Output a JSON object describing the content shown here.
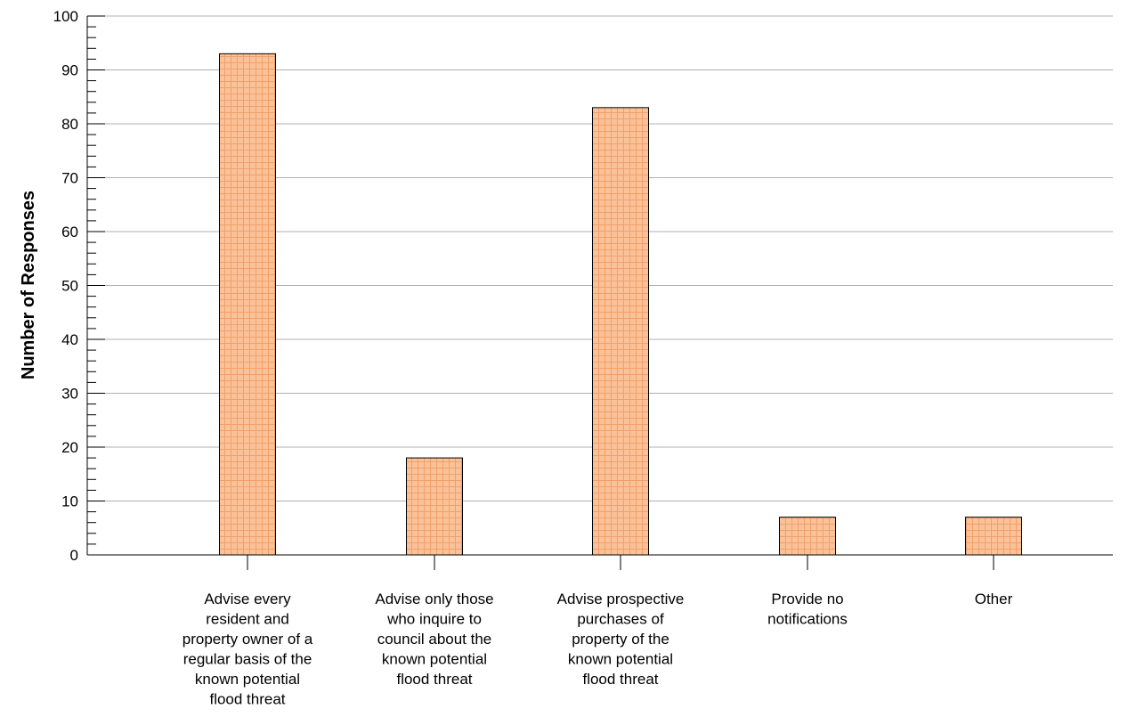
{
  "chart_data": {
    "type": "bar",
    "categories": [
      [
        "Advise every",
        "resident and",
        "property owner of a",
        "regular basis of the",
        "known potential",
        "flood threat"
      ],
      [
        "Advise only those",
        "who inquire to",
        "council about the",
        "known potential",
        "flood threat"
      ],
      [
        "Advise prospective",
        "purchases of",
        "property of the",
        "known potential",
        "flood threat"
      ],
      [
        "Provide no",
        "notifications"
      ],
      [
        "Other"
      ]
    ],
    "values": [
      93,
      18,
      83,
      7,
      7
    ],
    "ylabel": "Number of Responses",
    "xlabel": "",
    "title": "",
    "ylim": [
      0,
      100
    ],
    "y_major_ticks": [
      0,
      10,
      20,
      30,
      40,
      50,
      60,
      70,
      80,
      90,
      100
    ],
    "y_minor_step": 2,
    "grid": true,
    "legend": "none",
    "colors": {
      "bar_fill": "#fbc29a",
      "bar_hatch": "#f0a06a",
      "bar_stroke": "#000000",
      "grid": "#b0b0b0",
      "axis": "#000000"
    }
  }
}
